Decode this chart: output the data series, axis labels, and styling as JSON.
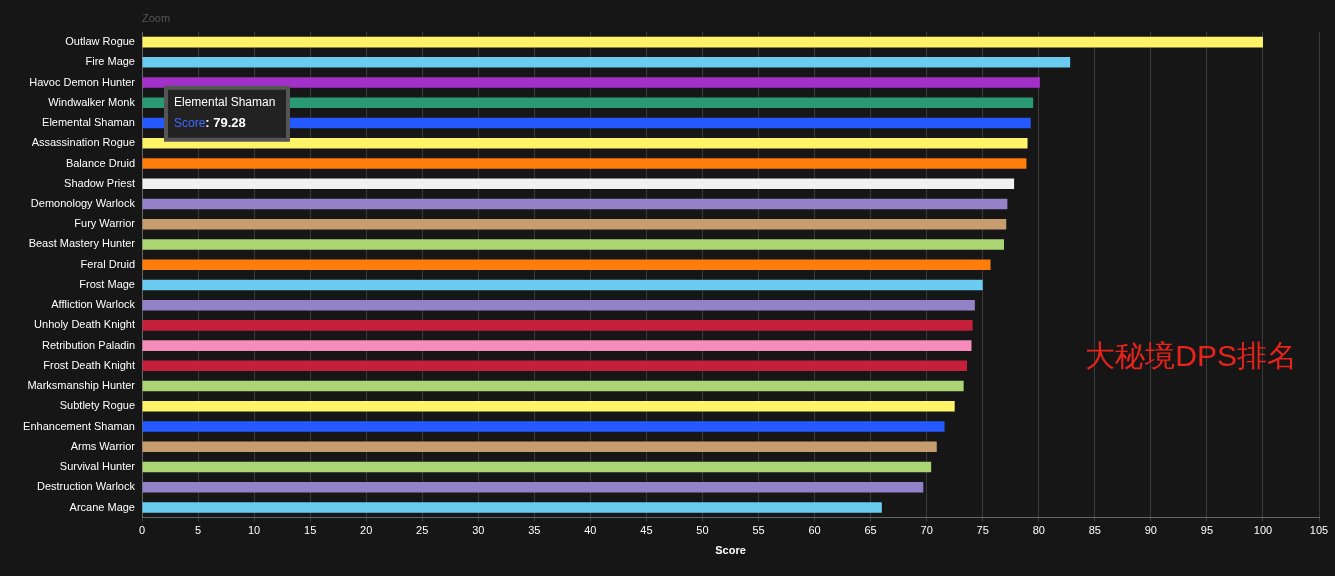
{
  "chart_data": {
    "type": "bar",
    "orientation": "horizontal",
    "xlabel": "Score",
    "categories": [
      "Outlaw Rogue",
      "Fire Mage",
      "Havoc Demon Hunter",
      "Windwalker Monk",
      "Elemental Shaman",
      "Assassination Rogue",
      "Balance Druid",
      "Shadow Priest",
      "Demonology Warlock",
      "Fury Warrior",
      "Beast Mastery Hunter",
      "Feral Druid",
      "Frost Mage",
      "Affliction Warlock",
      "Unholy Death Knight",
      "Retribution Paladin",
      "Frost Death Knight",
      "Marksmanship Hunter",
      "Subtlety Rogue",
      "Enhancement Shaman",
      "Arms Warrior",
      "Survival Hunter",
      "Destruction Warlock",
      "Arcane Mage"
    ],
    "values": [
      100,
      82.8,
      80.1,
      79.5,
      79.28,
      79.0,
      78.9,
      77.8,
      77.2,
      77.1,
      76.9,
      75.7,
      75.0,
      74.3,
      74.1,
      74.0,
      73.6,
      73.3,
      72.5,
      71.6,
      70.9,
      70.4,
      69.7,
      66.0
    ],
    "colors": [
      "#fff468",
      "#69ccf0",
      "#a330c9",
      "#2a9a74",
      "#2459ff",
      "#fff468",
      "#ff7d0a",
      "#f0f0f0",
      "#9482c9",
      "#c79c6e",
      "#abd473",
      "#ff7d0a",
      "#69ccf0",
      "#9482c9",
      "#c41f3b",
      "#f58cba",
      "#c41f3b",
      "#abd473",
      "#fff468",
      "#2459ff",
      "#c79c6e",
      "#abd473",
      "#9482c9",
      "#69ccf0"
    ],
    "xlim": [
      0,
      105
    ],
    "xticks": [
      0,
      5,
      10,
      15,
      20,
      25,
      30,
      35,
      40,
      45,
      50,
      55,
      60,
      65,
      70,
      75,
      80,
      85,
      90,
      95,
      100,
      105
    ],
    "grid": "x",
    "legend": false,
    "annotations": [
      "Zoom",
      "Elemental Shaman\nScore: 79.28",
      "大秘境DPS排名"
    ]
  }
}
